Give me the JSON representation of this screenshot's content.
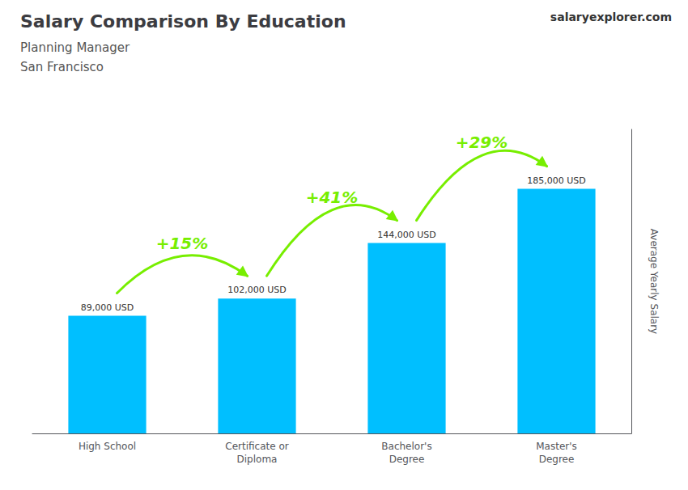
{
  "chart_data": {
    "type": "bar",
    "title": "Salary Comparison By Education",
    "subtitle": [
      "Planning Manager",
      "San Francisco"
    ],
    "ylabel": "Average Yearly Salary",
    "categories": [
      "High School",
      "Certificate or\nDiploma",
      "Bachelor's\nDegree",
      "Master's\nDegree"
    ],
    "values": [
      89000,
      102000,
      144000,
      185000
    ],
    "value_labels": [
      "89,000 USD",
      "102,000 USD",
      "144,000 USD",
      "185,000 USD"
    ],
    "data_labels": true,
    "color": "#00BFFF",
    "ylim": [
      0,
      230000
    ],
    "tick_labels": "x",
    "grid": false,
    "annotations": [
      {
        "text": "salaryexplorer.com"
      },
      {
        "text": "+15%",
        "from": "High School",
        "to": "Certificate or\nDiploma",
        "color": "#77EE00"
      },
      {
        "text": "+41%",
        "from": "Certificate or\nDiploma",
        "to": "Bachelor's\nDegree",
        "color": "#77EE00"
      },
      {
        "text": "+29%",
        "from": "Bachelor's\nDegree",
        "to": "Master's\nDegree",
        "color": "#77EE00"
      }
    ]
  }
}
